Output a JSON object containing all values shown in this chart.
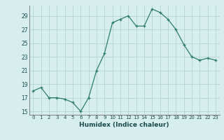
{
  "x": [
    0,
    1,
    2,
    3,
    4,
    5,
    6,
    7,
    8,
    9,
    10,
    11,
    12,
    13,
    14,
    15,
    16,
    17,
    18,
    19,
    20,
    21,
    22,
    23
  ],
  "y": [
    18,
    18.5,
    17,
    17,
    16.8,
    16.3,
    15,
    17,
    21,
    23.5,
    28,
    28.5,
    29,
    27.5,
    27.5,
    30,
    29.5,
    28.5,
    27,
    24.8,
    23,
    22.5,
    22.8,
    22.5
  ],
  "line_color": "#2e7d6e",
  "marker_color": "#2e7d6e",
  "bg_color": "#d6eeee",
  "grid_color": "#b0cccc",
  "xlabel": "Humidex (Indice chaleur)",
  "ylim": [
    14.5,
    30.5
  ],
  "yticks": [
    15,
    17,
    19,
    21,
    23,
    25,
    27,
    29
  ],
  "xlim": [
    -0.5,
    23.5
  ],
  "xticks": [
    0,
    1,
    2,
    3,
    4,
    5,
    6,
    7,
    8,
    9,
    10,
    11,
    12,
    13,
    14,
    15,
    16,
    17,
    18,
    19,
    20,
    21,
    22,
    23
  ]
}
